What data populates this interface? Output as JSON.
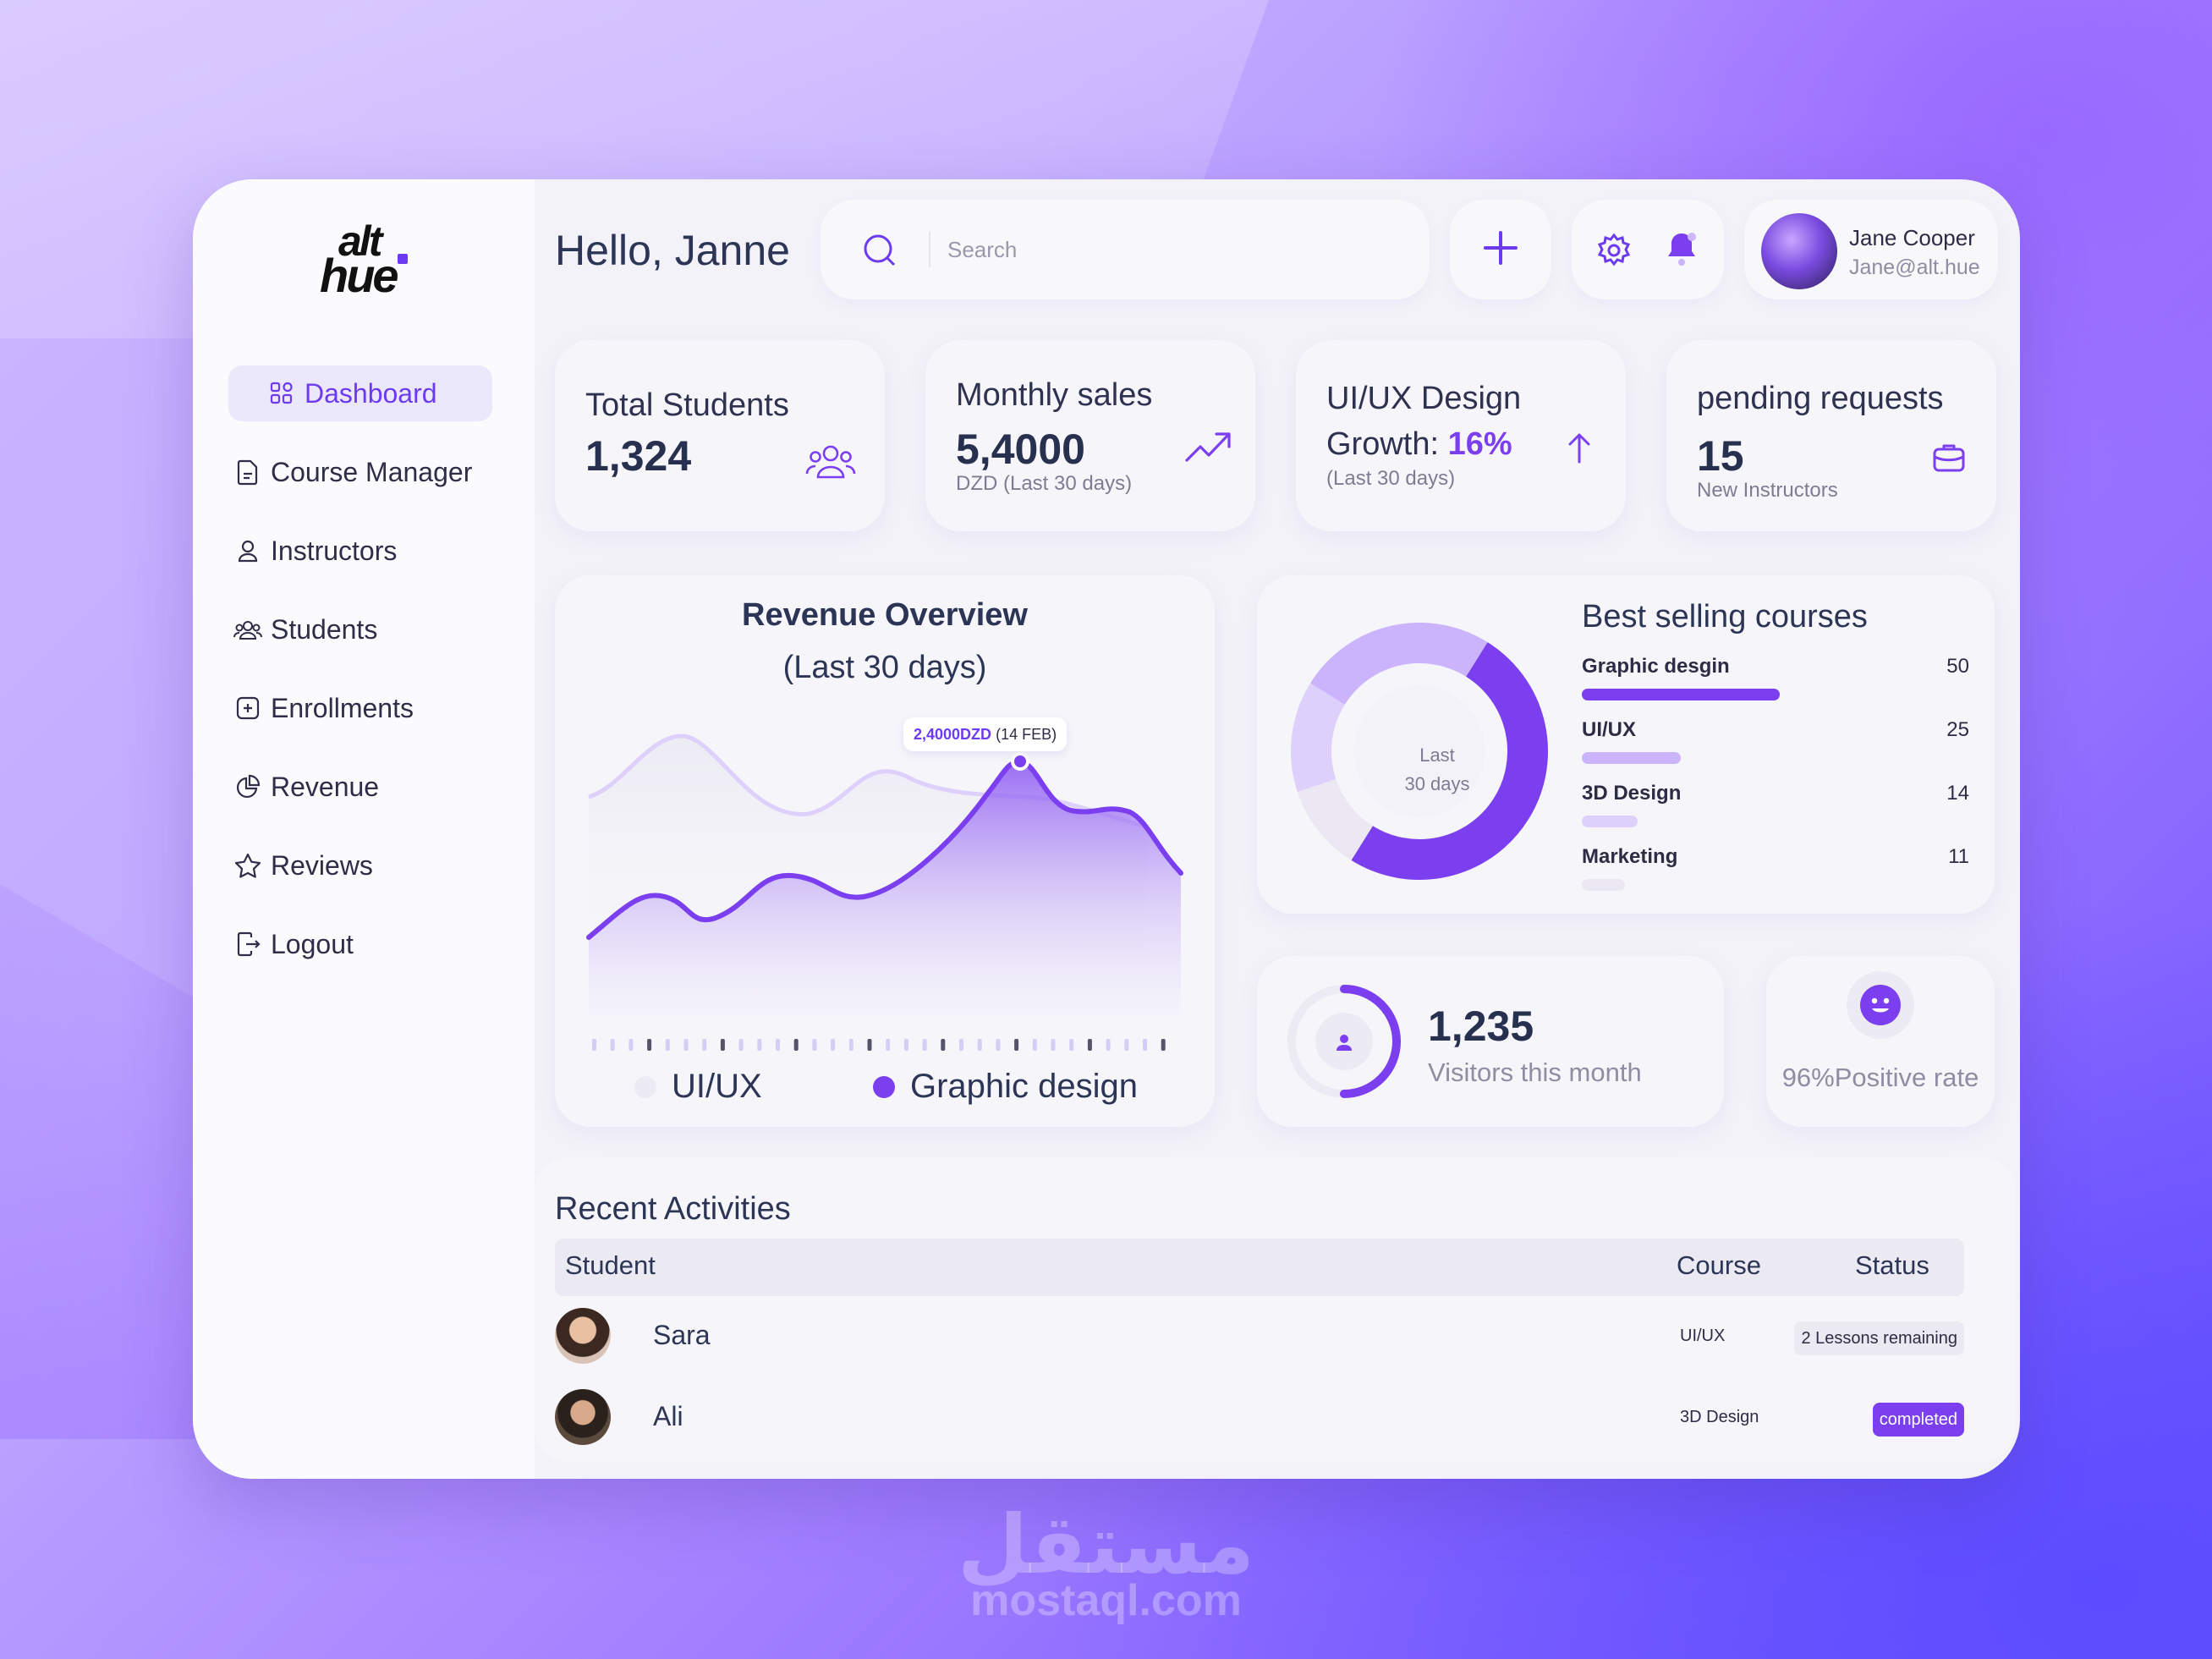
{
  "brand": {
    "logo_line1": "alt",
    "logo_line2": "hue"
  },
  "sidebar": {
    "items": [
      {
        "label": "Dashboard",
        "icon": "grid-icon",
        "active": true
      },
      {
        "label": "Course Manager",
        "icon": "document-icon"
      },
      {
        "label": "Instructors",
        "icon": "user-icon"
      },
      {
        "label": "Students",
        "icon": "users-icon"
      },
      {
        "label": "Enrollments",
        "icon": "plus-square-icon"
      },
      {
        "label": "Revenue",
        "icon": "pie-icon"
      },
      {
        "label": "Reviews",
        "icon": "star-icon"
      },
      {
        "label": "Logout",
        "icon": "logout-icon"
      }
    ]
  },
  "header": {
    "greeting": "Hello, Janne",
    "search_placeholder": "Search",
    "user": {
      "name": "Jane Cooper",
      "email": "Jane@alt.hue"
    }
  },
  "stats": {
    "total_students": {
      "title": "Total Students",
      "value": "1,324"
    },
    "monthly_sales": {
      "title": "Monthly sales",
      "value": "5,4000",
      "sub": "DZD (Last 30 days)"
    },
    "uiux_growth": {
      "title": "UI/UX Design",
      "label": "Growth: ",
      "value": "16%",
      "sub": "(Last 30 days)"
    },
    "pending": {
      "title": "pending requests",
      "value": "15",
      "sub": "New Instructors"
    }
  },
  "revenue": {
    "title": "Revenue Overview",
    "subtitle": "(Last 30 days)",
    "tooltip_value": "2,4000DZD",
    "tooltip_date": "(14 FEB)",
    "legend": [
      {
        "label": "UI/UX",
        "color": "#ecebf4"
      },
      {
        "label": "Graphic design",
        "color": "#7b3ff0"
      }
    ]
  },
  "best_selling": {
    "title": "Best selling courses",
    "center_line1": "Last",
    "center_line2": "30 days",
    "courses": [
      {
        "name": "Graphic desgin",
        "count": "50",
        "value": 50,
        "color": "#7b3ff0"
      },
      {
        "name": "UI/UX",
        "count": "25",
        "value": 25,
        "color": "#cbb4fb"
      },
      {
        "name": "3D Design",
        "count": "14",
        "value": 14,
        "color": "#ddd1fb"
      },
      {
        "name": "Marketing",
        "count": "11",
        "value": 11,
        "color": "#ebe8f3"
      }
    ]
  },
  "visitors": {
    "value": "1,235",
    "label": "Visitors this month",
    "progress": 0.5
  },
  "positive": {
    "label": "96%Positive rate"
  },
  "recent": {
    "title": "Recent Activities",
    "columns": {
      "student": "Student",
      "course": "Course",
      "status": "Status"
    },
    "rows": [
      {
        "student": "Sara",
        "course": "UI/UX",
        "status": "2 Lessons remaining",
        "state": "pending"
      },
      {
        "student": "Ali",
        "course": "3D Design",
        "status": "completed",
        "state": "done"
      }
    ]
  },
  "watermark": {
    "arabic": "مستقل",
    "latin": "mostaql.com"
  }
}
